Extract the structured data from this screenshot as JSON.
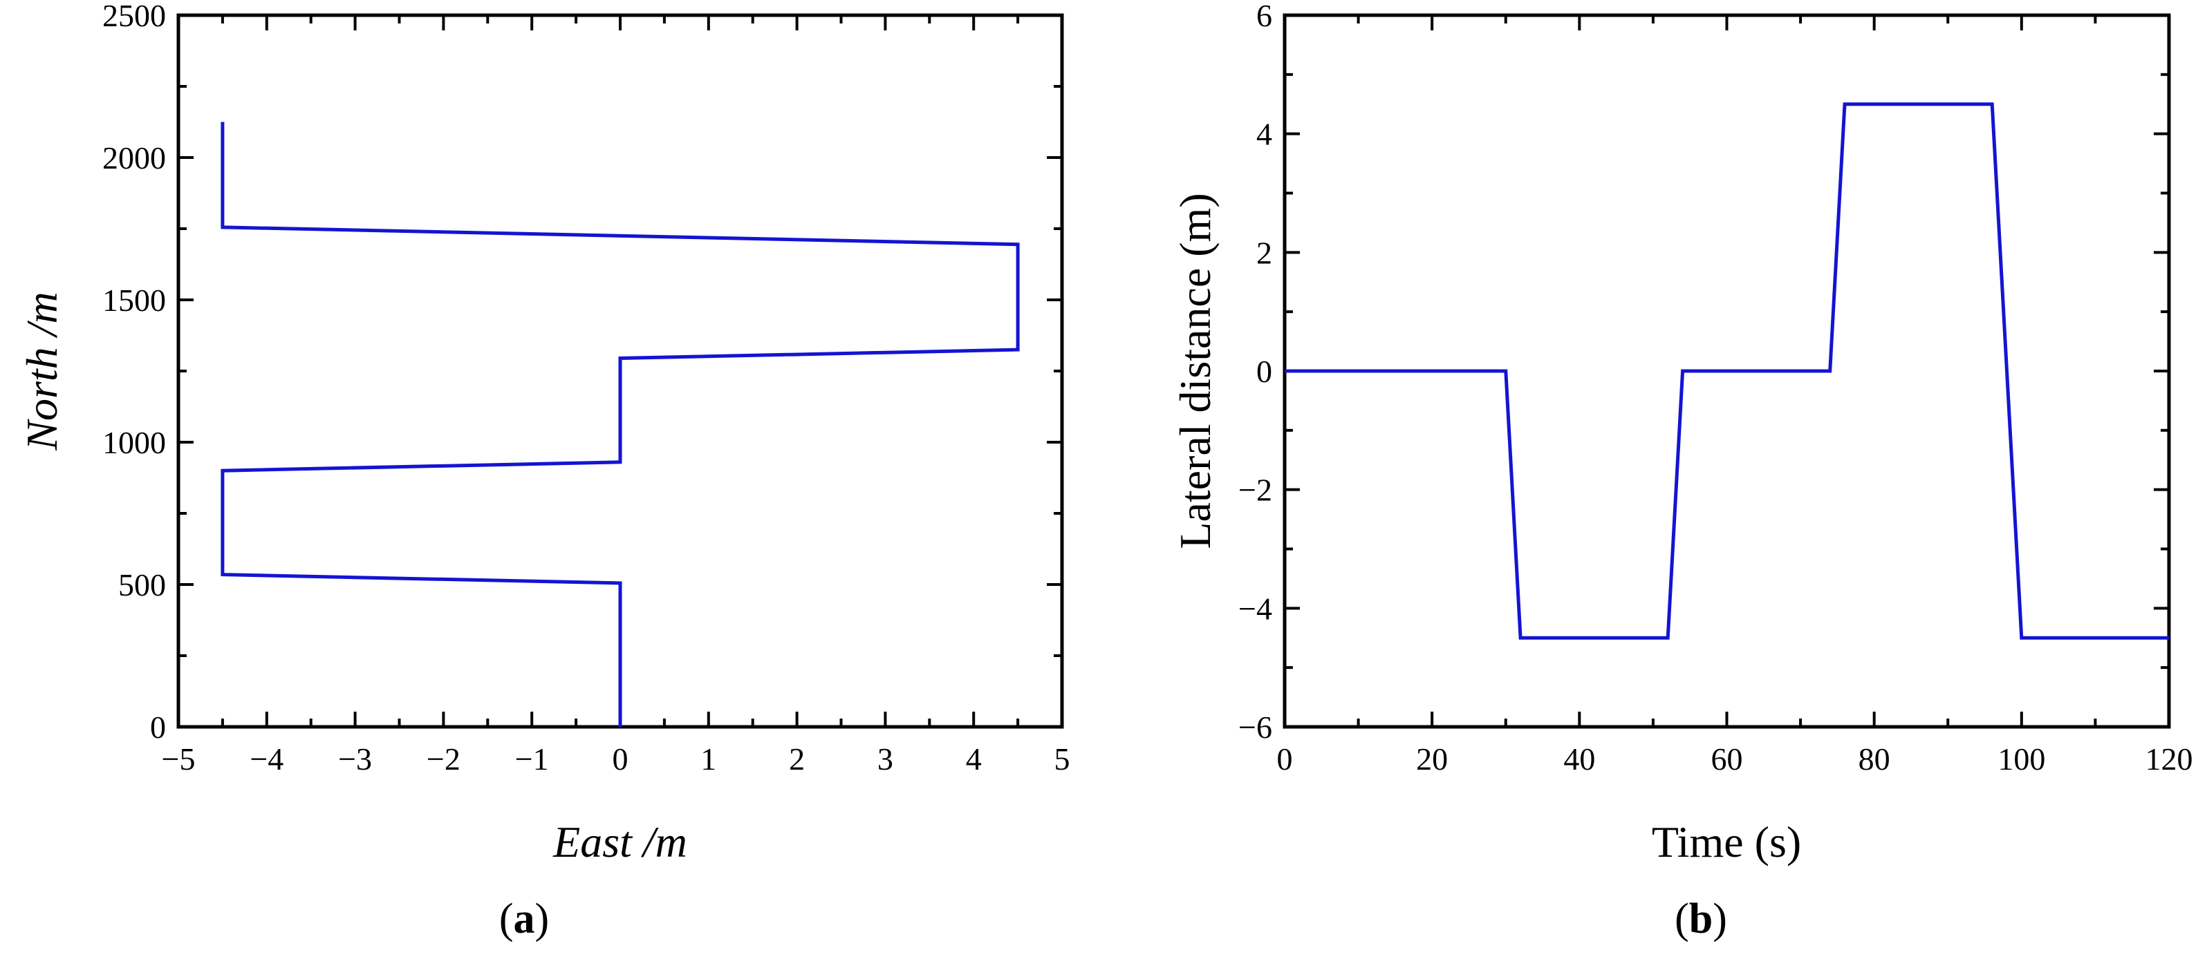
{
  "colors": {
    "series": "#1414d2",
    "axes": "#000000",
    "background": "#ffffff"
  },
  "chart_data": [
    {
      "type": "line",
      "panel_label": {
        "open": "(",
        "letter": "a",
        "close": ")"
      },
      "title": "",
      "xlabel": "East /m",
      "ylabel": "North /m",
      "xlim": [
        -5,
        5
      ],
      "ylim": [
        0,
        2500
      ],
      "xticks": [
        -5,
        -4,
        -3,
        -2,
        -1,
        0,
        1,
        2,
        3,
        4,
        5
      ],
      "yticks": [
        0,
        500,
        1000,
        1500,
        2000,
        2500
      ],
      "xtick_labels": [
        "−5",
        "−4",
        "−3",
        "−2",
        "−1",
        "0",
        "1",
        "2",
        "3",
        "4",
        "5"
      ],
      "ytick_labels": [
        "0",
        "500",
        "1000",
        "1500",
        "2000",
        "2500"
      ],
      "grid": false,
      "legend": "none",
      "series": [
        {
          "x": [
            0,
            0,
            -4.5,
            -4.5,
            0,
            0,
            4.5,
            4.5,
            -4.5,
            -4.5
          ],
          "y": [
            0,
            505,
            535,
            900,
            930,
            1295,
            1325,
            1695,
            1755,
            2125
          ]
        }
      ]
    },
    {
      "type": "line",
      "panel_label": {
        "open": "(",
        "letter": "b",
        "close": ")"
      },
      "title": "",
      "xlabel": "Time (s)",
      "ylabel": "Lateral distance (m)",
      "xlim": [
        0,
        120
      ],
      "ylim": [
        -6,
        6
      ],
      "xticks": [
        0,
        20,
        40,
        60,
        80,
        100,
        120
      ],
      "yticks": [
        -6,
        -4,
        -2,
        0,
        2,
        4,
        6
      ],
      "xtick_labels": [
        "0",
        "20",
        "40",
        "60",
        "80",
        "100",
        "120"
      ],
      "ytick_labels": [
        "−6",
        "−4",
        "−2",
        "0",
        "2",
        "4",
        "6"
      ],
      "grid": false,
      "legend": "none",
      "series": [
        {
          "x": [
            0,
            30,
            32,
            52,
            54,
            74,
            76,
            96,
            100,
            120
          ],
          "y": [
            0,
            0,
            -4.5,
            -4.5,
            0,
            0,
            4.5,
            4.5,
            -4.5,
            -4.5
          ]
        }
      ]
    }
  ]
}
